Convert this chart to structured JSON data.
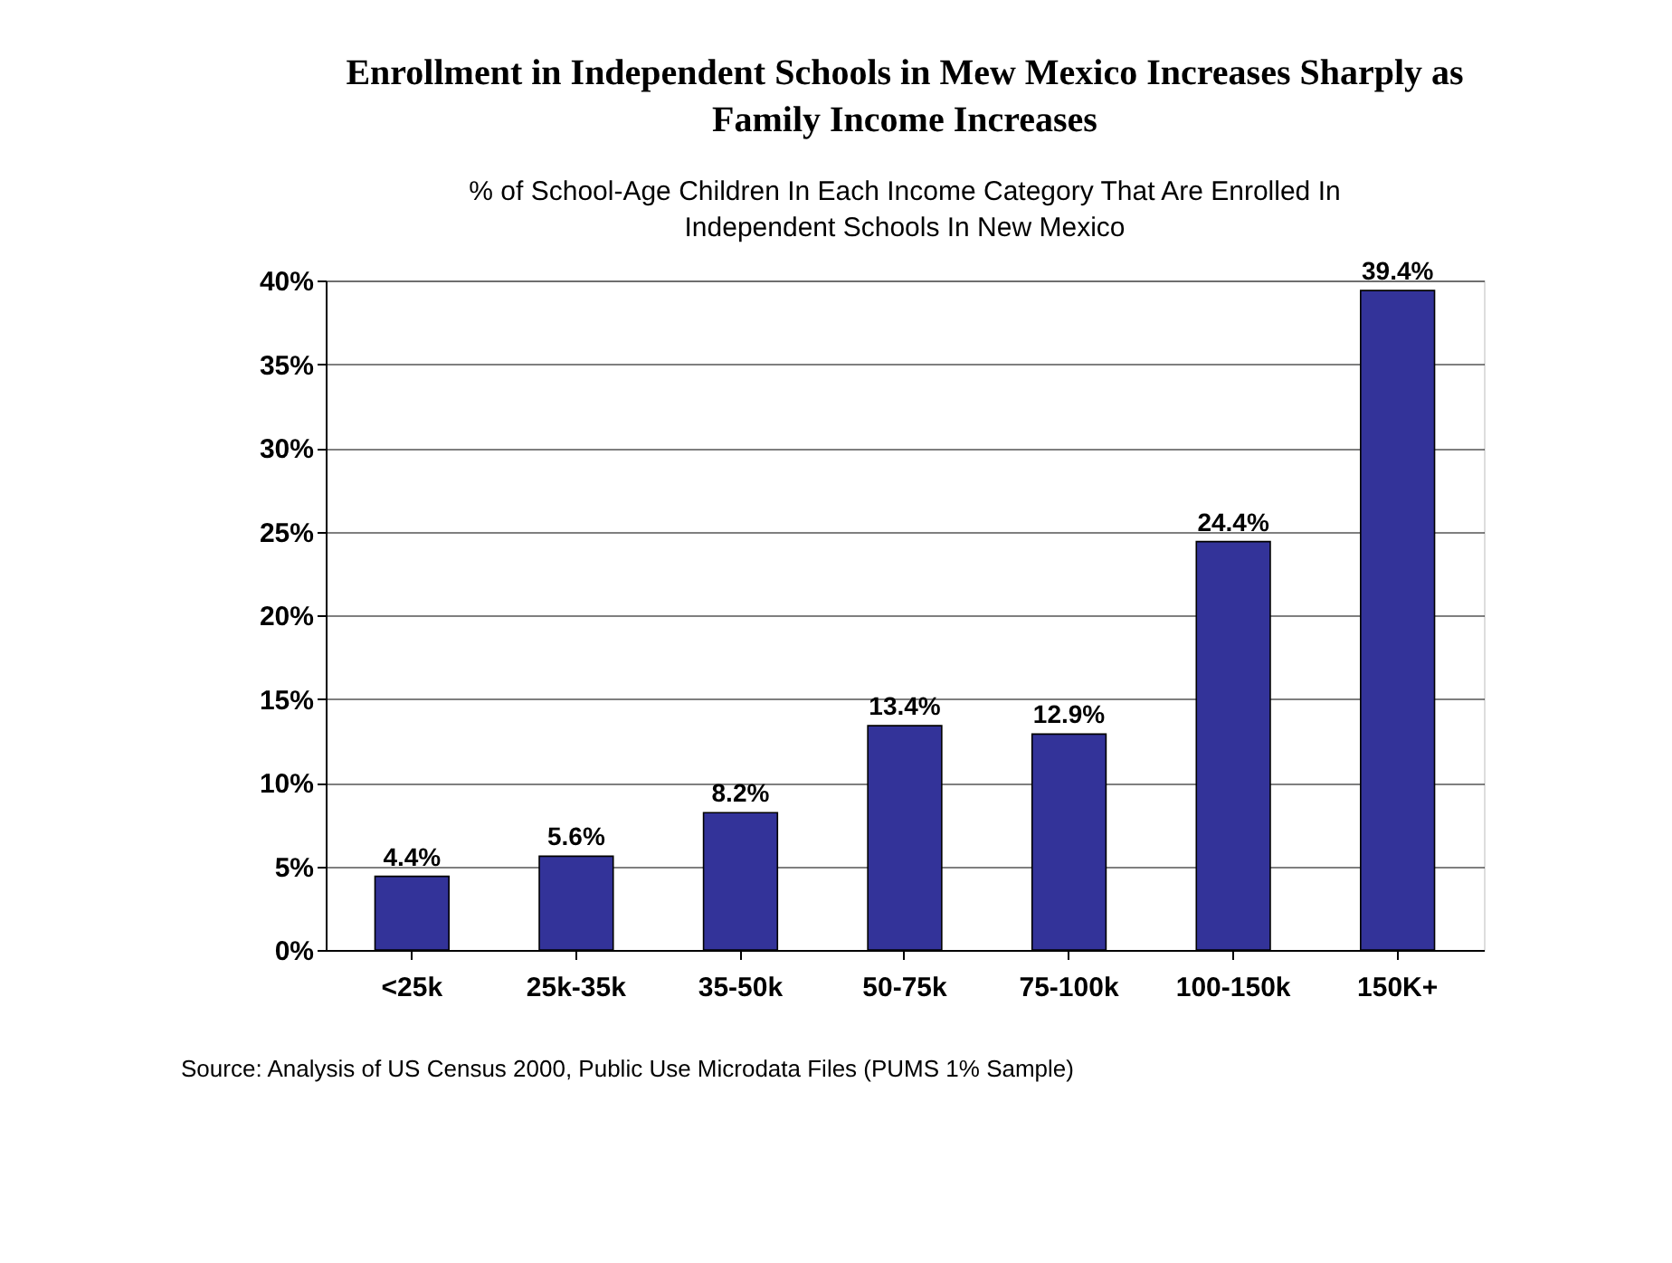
{
  "chart_data": {
    "type": "bar",
    "title": "Enrollment in Independent Schools in Mew Mexico Increases Sharply as Family Income Increases",
    "subtitle": "% of School-Age Children In Each Income Category That Are Enrolled In Independent Schools In New Mexico",
    "categories": [
      "<25k",
      "25k-35k",
      "35-50k",
      "50-75k",
      "75-100k",
      "100-150k",
      "150K+"
    ],
    "values": [
      4.4,
      5.6,
      8.2,
      13.4,
      12.9,
      24.4,
      39.4
    ],
    "value_labels": [
      "4.4%",
      "5.6%",
      "8.2%",
      "13.4%",
      "12.9%",
      "24.4%",
      "39.4%"
    ],
    "color": "#333399",
    "ylim": [
      0,
      40
    ],
    "yticks": [
      {
        "value": 0,
        "label": "0%"
      },
      {
        "value": 5,
        "label": "5%"
      },
      {
        "value": 10,
        "label": "10%"
      },
      {
        "value": 15,
        "label": "15%"
      },
      {
        "value": 20,
        "label": "20%"
      },
      {
        "value": 25,
        "label": "25%"
      },
      {
        "value": 30,
        "label": "30%"
      },
      {
        "value": 35,
        "label": "35%"
      },
      {
        "value": 40,
        "label": "40%"
      }
    ],
    "grid": "y",
    "annotations": [
      "Source: Analysis of US Census 2000, Public Use Microdata Files (PUMS 1% Sample)"
    ]
  }
}
